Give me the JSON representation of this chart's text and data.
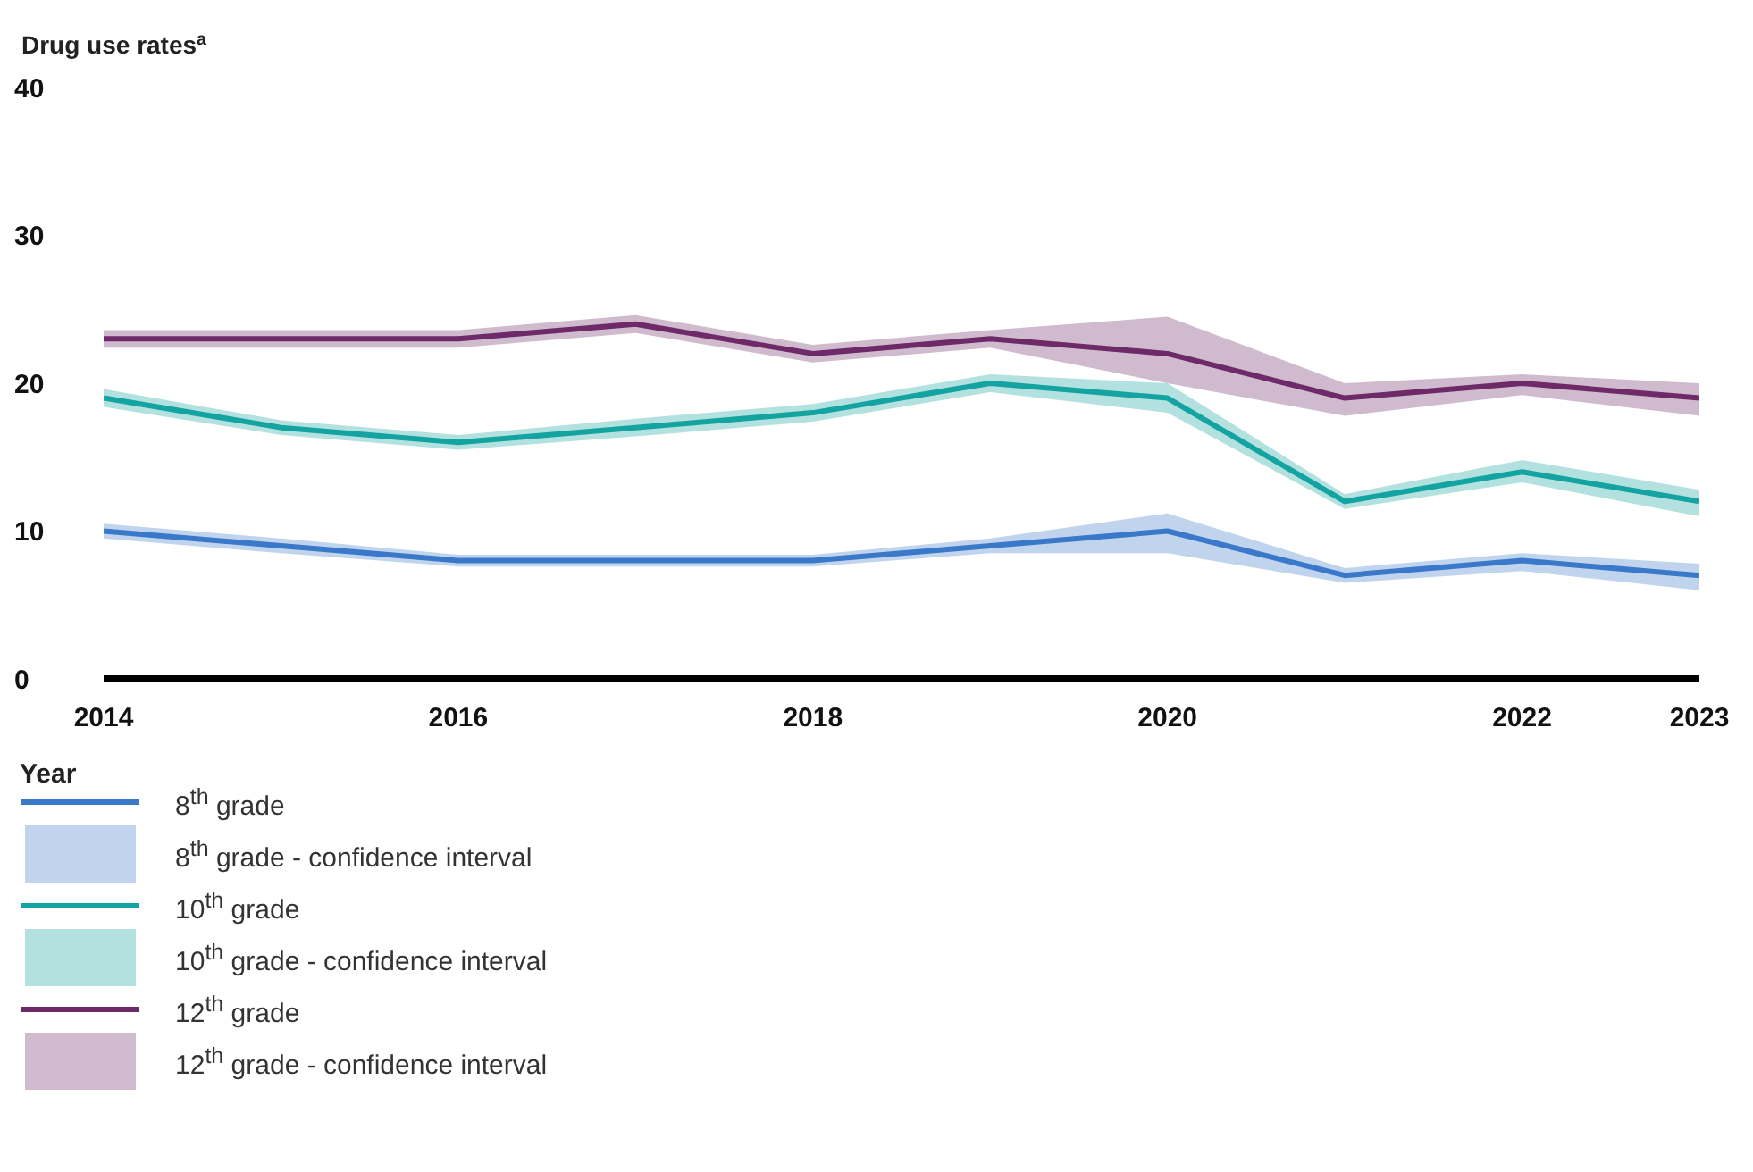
{
  "chart_data": {
    "type": "line",
    "ylabel": "Drug use rates$^{a}$",
    "xlabel": "Year",
    "x": [
      2014,
      2015,
      2016,
      2017,
      2018,
      2019,
      2020,
      2021,
      2022,
      2023
    ],
    "xlim": [
      2014,
      2023
    ],
    "xticks": [
      2014,
      2016,
      2018,
      2020,
      2022,
      2023
    ],
    "ylim": [
      0,
      40
    ],
    "yticks": [
      0,
      10,
      20,
      30,
      40
    ],
    "grid": false,
    "legend": "bottom",
    "marker": "none",
    "line_style": "solid",
    "annotations": [
      "8$^{th}$ grade - confidence interval",
      "10$^{th}$ grade - confidence interval",
      "12$^{th}$ grade - confidence interval"
    ],
    "series": [
      {
        "name": "8$^{th}$ grade",
        "color": "#3a78c9",
        "values": [
          10,
          9,
          8,
          8,
          8,
          9,
          10,
          7,
          8,
          7
        ],
        "lower": [
          9.5,
          8.5,
          7.6,
          7.6,
          7.6,
          8.5,
          8.5,
          6.5,
          7.3,
          6
        ],
        "upper": [
          10.5,
          9.5,
          8.4,
          8.4,
          8.4,
          9.5,
          11.2,
          7.5,
          8.5,
          7.8
        ]
      },
      {
        "name": "10$^{th}$ grade",
        "color": "#13a3a0",
        "values": [
          19,
          17,
          16,
          17,
          18,
          20,
          19,
          12,
          14,
          12
        ],
        "lower": [
          18.4,
          16.5,
          15.5,
          16.4,
          17.4,
          19.4,
          18,
          11.5,
          13.3,
          11
        ],
        "upper": [
          19.6,
          17.5,
          16.5,
          17.6,
          18.6,
          20.6,
          20,
          12.5,
          14.8,
          12.8
        ]
      },
      {
        "name": "12$^{th}$ grade",
        "color": "#6e2a68",
        "values": [
          23,
          23,
          23,
          24,
          22,
          23,
          22,
          19,
          20,
          19
        ],
        "lower": [
          22.4,
          22.4,
          22.4,
          23.4,
          21.4,
          22.4,
          20,
          17.8,
          19.2,
          17.8
        ],
        "upper": [
          23.6,
          23.6,
          23.6,
          24.6,
          22.6,
          23.6,
          24.5,
          20,
          20.6,
          20
        ]
      }
    ]
  }
}
